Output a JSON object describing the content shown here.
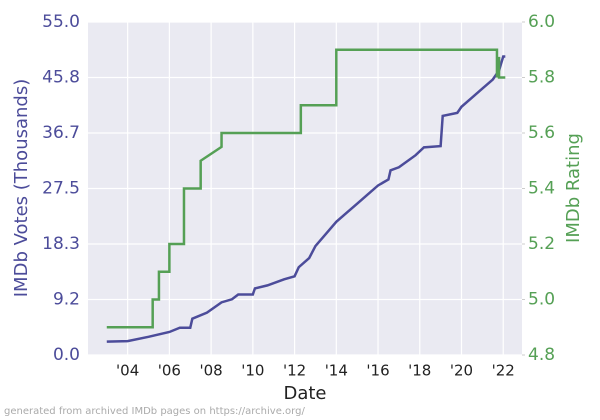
{
  "chart_data": {
    "type": "line",
    "x_label": "Date",
    "y_label": "IMDb Votes (Thousands)",
    "y2_label": "IMDb Rating",
    "footnote": "generated from archived IMDb pages on https://archive.org/",
    "xlim": [
      2002.1,
      2022.9
    ],
    "xticks": [
      {
        "value": 2004,
        "label": "'04"
      },
      {
        "value": 2006,
        "label": "'06"
      },
      {
        "value": 2008,
        "label": "'08"
      },
      {
        "value": 2010,
        "label": "'10"
      },
      {
        "value": 2012,
        "label": "'12"
      },
      {
        "value": 2014,
        "label": "'14"
      },
      {
        "value": 2016,
        "label": "'16"
      },
      {
        "value": 2018,
        "label": "'18"
      },
      {
        "value": 2020,
        "label": "'20"
      },
      {
        "value": 2022,
        "label": "'22"
      }
    ],
    "ylim": [
      0,
      55
    ],
    "yticks": [
      {
        "value": 0,
        "label": "0.0"
      },
      {
        "value": 9.17,
        "label": "9.2"
      },
      {
        "value": 18.33,
        "label": "18.3"
      },
      27.5,
      {
        "value": 36.67,
        "label": "36.7"
      },
      {
        "value": 45.83,
        "label": "45.8"
      },
      {
        "value": 55,
        "label": "55.0"
      }
    ],
    "y2lim": [
      4.8,
      6.0
    ],
    "y2ticks": [
      4.8,
      {
        "value": 5.0,
        "label": "5.0"
      },
      5.2,
      5.4,
      5.6,
      5.8,
      {
        "value": 6.0,
        "label": "6.0"
      }
    ],
    "grid": true,
    "series": [
      {
        "name": "IMDb Votes",
        "color": "#4c4c9a",
        "axis": "y",
        "x": [
          2003.0,
          2004.0,
          2005.0,
          2006.0,
          2006.5,
          2007.0,
          2007.1,
          2007.8,
          2008.5,
          2009.0,
          2009.3,
          2010.0,
          2010.1,
          2010.7,
          2011.5,
          2012.0,
          2012.2,
          2012.7,
          2013.0,
          2013.5,
          2014.0,
          2014.5,
          2015.0,
          2015.5,
          2016.0,
          2016.5,
          2016.6,
          2017.0,
          2017.8,
          2018.2,
          2019.0,
          2019.1,
          2019.8,
          2020.0,
          2020.5,
          2021.0,
          2021.5,
          2021.8,
          2022.0,
          2022.1
        ],
        "values": [
          2.2,
          2.3,
          3.0,
          3.8,
          4.5,
          4.5,
          6,
          7,
          8.7,
          9.2,
          10,
          10,
          11,
          11.5,
          12.5,
          13,
          14.5,
          16,
          18,
          20,
          22,
          23.5,
          25,
          26.5,
          28,
          29,
          30.5,
          31,
          33,
          34.3,
          34.5,
          39.5,
          40,
          41,
          42.5,
          44,
          45.5,
          47,
          49.3,
          49.3
        ]
      },
      {
        "name": "IMDb Rating",
        "color": "#55a055",
        "axis": "y2",
        "x": [
          2003.0,
          2005.2,
          2005.2,
          2005.5,
          2005.5,
          2006.0,
          2006.0,
          2006.7,
          2006.7,
          2007.5,
          2007.5,
          2008.5,
          2008.5,
          2012.3,
          2012.3,
          2014.0,
          2014.0,
          2021.7,
          2021.7,
          2021.75,
          2021.8,
          2021.8,
          2022.1
        ],
        "values": [
          4.9,
          4.9,
          5.0,
          5.0,
          5.1,
          5.1,
          5.2,
          5.2,
          5.4,
          5.4,
          5.5,
          5.55,
          5.6,
          5.6,
          5.7,
          5.7,
          5.9,
          5.9,
          5.8,
          5.87,
          5.87,
          5.8,
          5.8
        ]
      }
    ]
  }
}
